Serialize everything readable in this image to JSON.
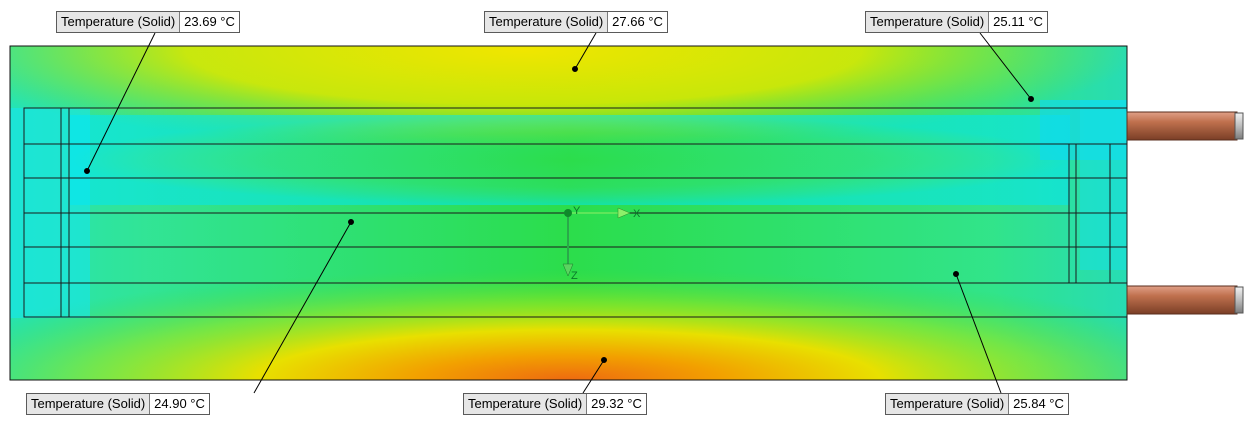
{
  "view": {
    "triad": {
      "y_axis": "Y",
      "x_axis": "X",
      "z_axis": "Z"
    },
    "colors": {
      "coolest": "#00e8ff",
      "cool": "#3ee6c8",
      "mid": "#22dd44",
      "warm": "#dde800",
      "hot": "#f06a10",
      "pipe": "#c0714e"
    }
  },
  "probes": [
    {
      "label": "Temperature (Solid)",
      "value": "23.69 °C"
    },
    {
      "label": "Temperature (Solid)",
      "value": "27.66 °C"
    },
    {
      "label": "Temperature (Solid)",
      "value": "25.11 °C"
    },
    {
      "label": "Temperature (Solid)",
      "value": "24.90 °C"
    },
    {
      "label": "Temperature (Solid)",
      "value": "29.32 °C"
    },
    {
      "label": "Temperature (Solid)",
      "value": "25.84 °C"
    }
  ]
}
